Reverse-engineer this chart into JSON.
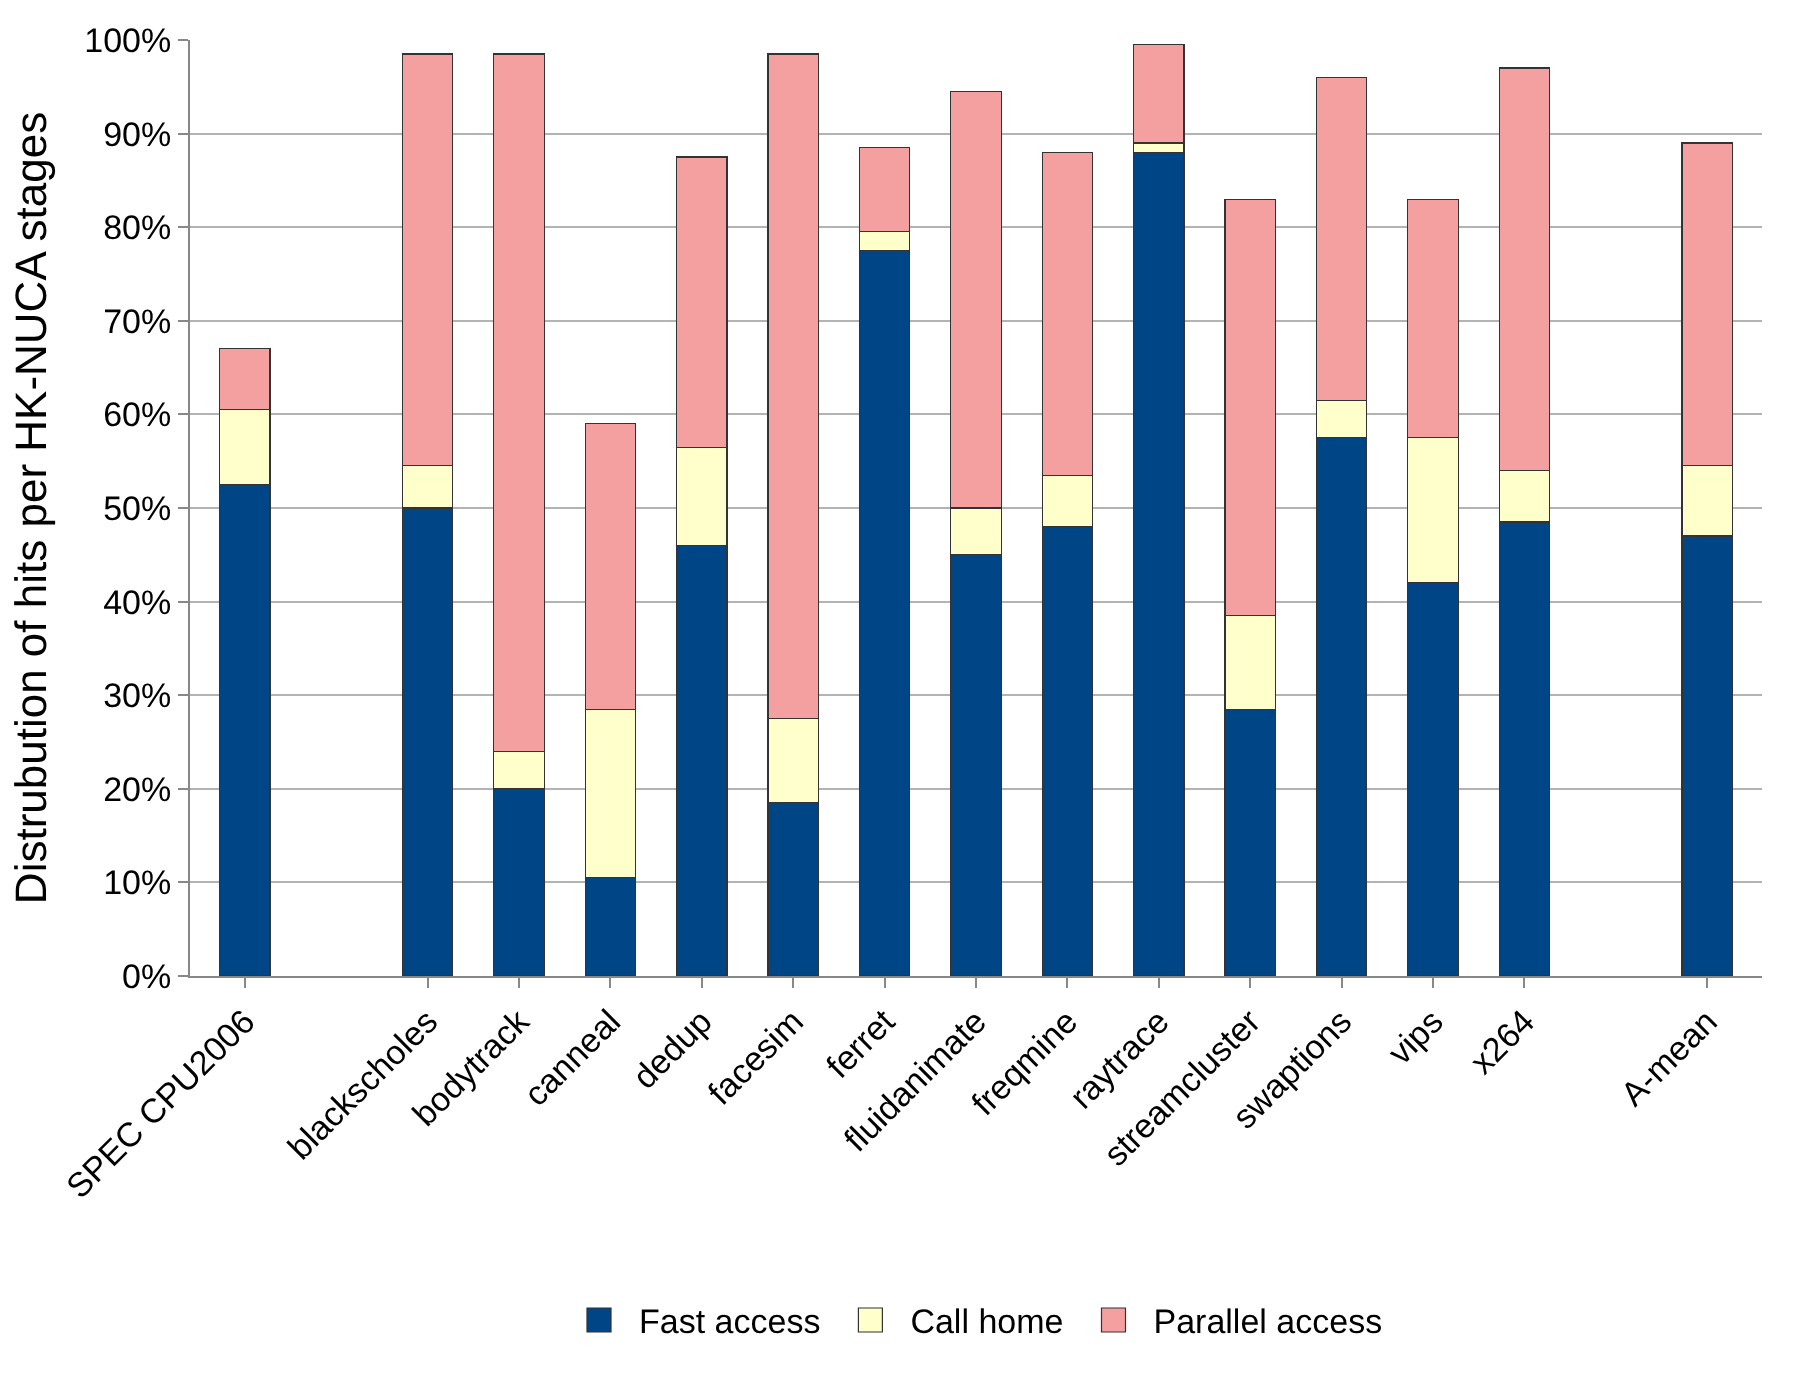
{
  "chart_data": {
    "type": "bar",
    "ylabel": "Distrubution of hits per HK-NUCA stages",
    "categories": [
      "SPEC CPU2006",
      null,
      "blackscholes",
      "bodytrack",
      "canneal",
      "dedup",
      "facesim",
      "ferret",
      "fluidanimate",
      "freqmine",
      "raytrace",
      "streamcluster",
      "swaptions",
      "vips",
      "x264",
      null,
      "A-mean"
    ],
    "stacked": true,
    "series": [
      {
        "name": "Fast access",
        "color": "#004586",
        "values": [
          52.5,
          null,
          50,
          20,
          10.5,
          46,
          18.5,
          77.5,
          45,
          48,
          88,
          28.5,
          57.5,
          42,
          48.5,
          null,
          47
        ]
      },
      {
        "name": "Call home",
        "color": "#ffffcc",
        "values": [
          8,
          null,
          4.5,
          4,
          18,
          10.5,
          9,
          2,
          5,
          5.5,
          1,
          10,
          4,
          15.5,
          5.5,
          null,
          7.5
        ]
      },
      {
        "name": "Parallel access",
        "color": "#f4a0a0",
        "values": [
          6.5,
          null,
          44,
          74.5,
          30.5,
          31,
          71,
          9,
          44.5,
          34.5,
          10.5,
          44.5,
          34.5,
          25.5,
          43,
          null,
          34.5
        ]
      }
    ],
    "ylim": [
      0,
      100
    ],
    "yticks": [
      {
        "value": 0,
        "label": "0%"
      },
      {
        "value": 10,
        "label": "10%"
      },
      {
        "value": 20,
        "label": "20%"
      },
      {
        "value": 30,
        "label": "30%"
      },
      {
        "value": 40,
        "label": "40%"
      },
      {
        "value": 50,
        "label": "50%"
      },
      {
        "value": 60,
        "label": "60%"
      },
      {
        "value": 70,
        "label": "70%"
      },
      {
        "value": 80,
        "label": "80%"
      },
      {
        "value": 90,
        "label": "90%"
      },
      {
        "value": 100,
        "label": "100%"
      }
    ],
    "grid": "y",
    "legend": "bottom"
  }
}
